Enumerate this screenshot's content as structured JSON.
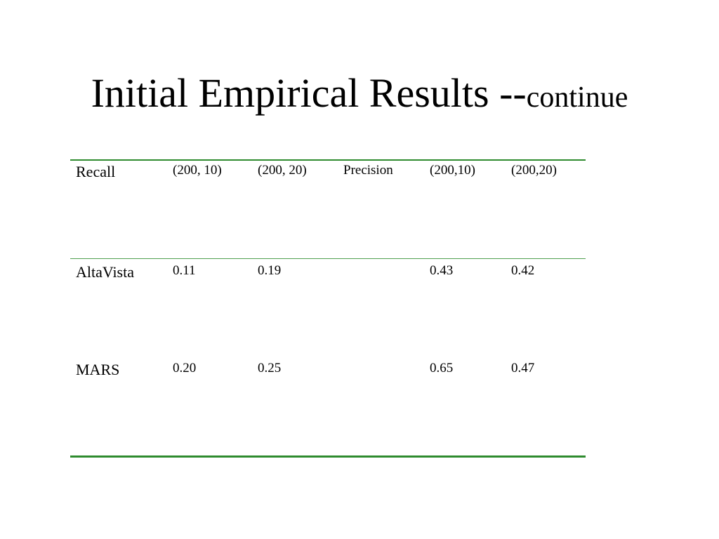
{
  "slide": {
    "title_main": "Initial Empirical Results --",
    "title_small": "continue"
  },
  "table": {
    "header": [
      "Recall",
      "(200, 10)",
      "(200, 20)",
      "Precision",
      "(200,10)",
      "(200,20)"
    ],
    "rows": [
      [
        "AltaVista",
        "0.11",
        "0.19",
        "",
        "0.43",
        "0.42"
      ],
      [
        "MARS",
        "0.20",
        "0.25",
        "",
        "0.65",
        "0.47"
      ]
    ]
  },
  "colors": {
    "rule": "#2e8b2e",
    "text": "#000000",
    "background": "#ffffff"
  }
}
